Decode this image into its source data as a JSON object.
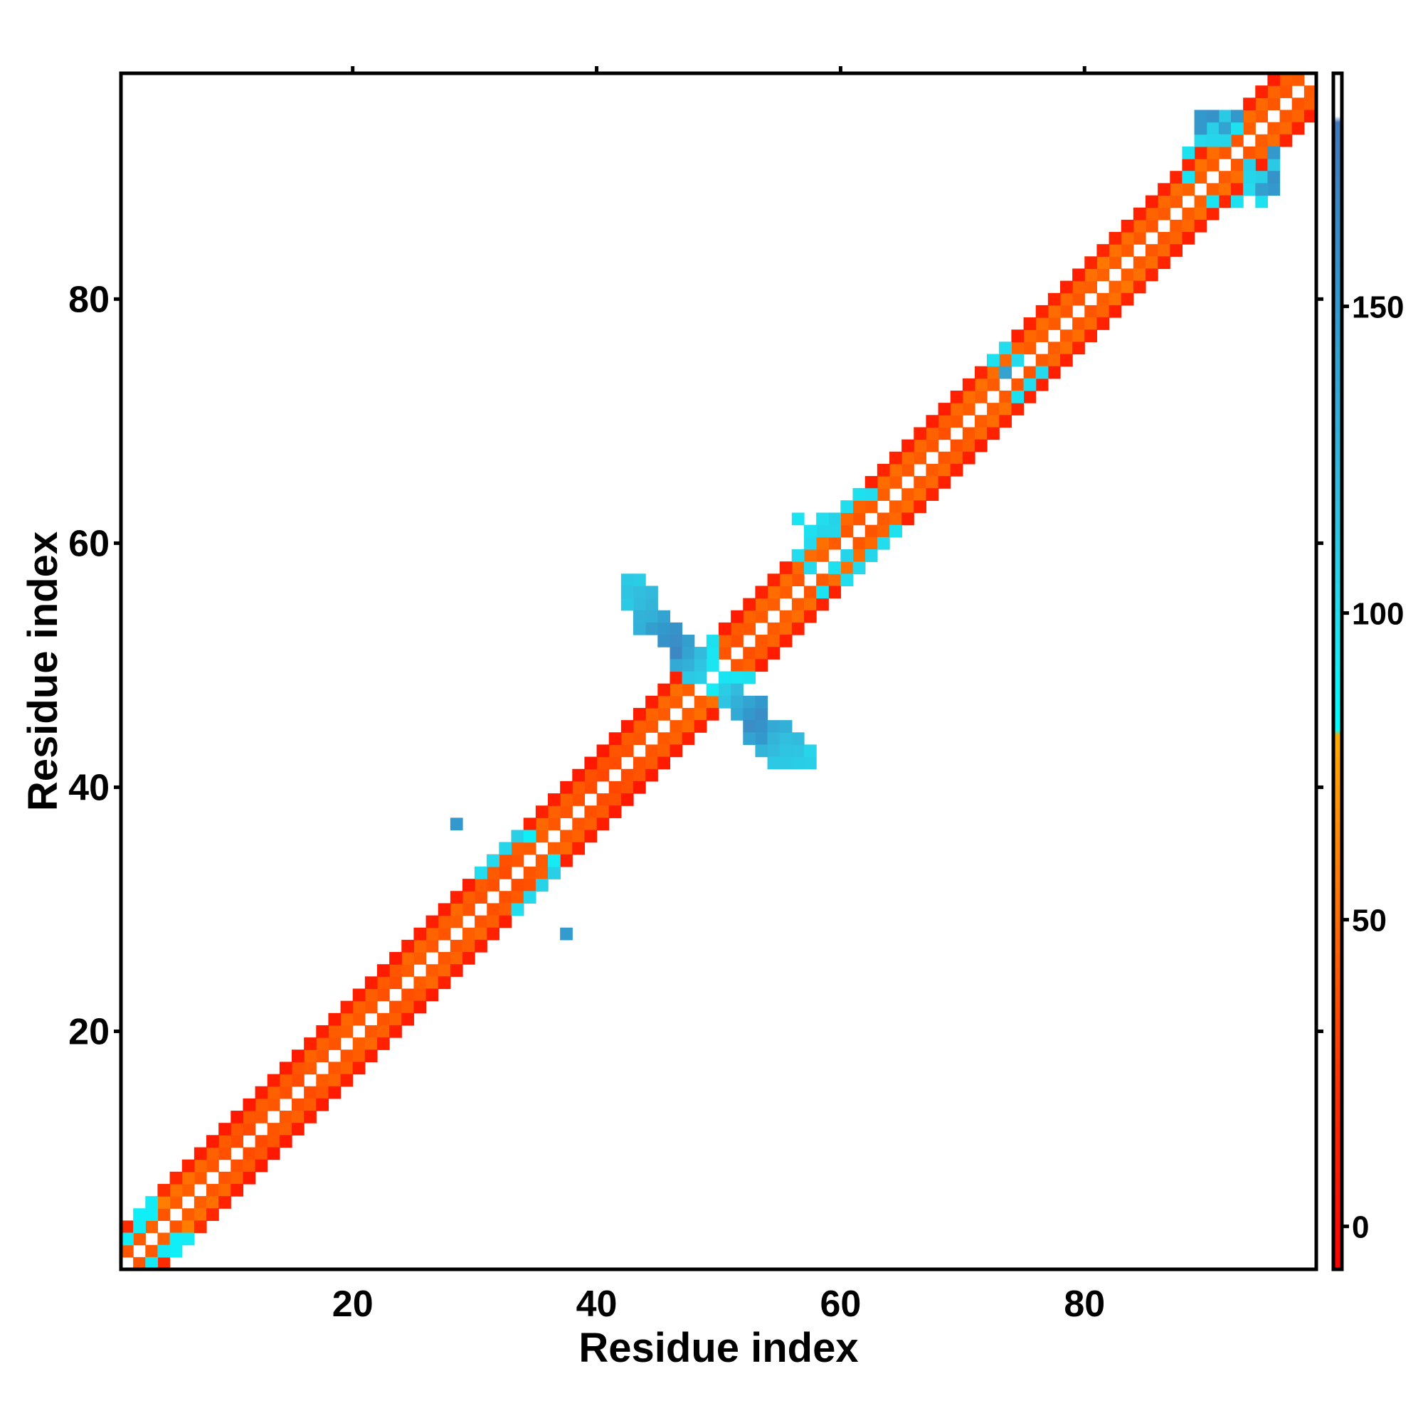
{
  "chart_data": {
    "type": "heatmap",
    "title": "",
    "xlabel": "Residue index",
    "ylabel": "Residue index",
    "xlim": [
      1,
      98
    ],
    "ylim": [
      1,
      98
    ],
    "x_ticks": [
      20,
      40,
      60,
      80
    ],
    "y_ticks": [
      20,
      40,
      60,
      80
    ],
    "grid": false,
    "colorbar": {
      "range": [
        -7,
        180
      ],
      "ticks": [
        0,
        50,
        100,
        150
      ],
      "stops": [
        {
          "value": -7,
          "color": "#ff0000"
        },
        {
          "value": 25,
          "color": "#ff3300"
        },
        {
          "value": 55,
          "color": "#ff7700"
        },
        {
          "value": 80,
          "color": "#ffaa00"
        },
        {
          "value": 81,
          "color": "#00ffff"
        },
        {
          "value": 100,
          "color": "#22ddee"
        },
        {
          "value": 120,
          "color": "#33bbdd"
        },
        {
          "value": 150,
          "color": "#3399cc"
        },
        {
          "value": 180,
          "color": "#4477bb"
        },
        {
          "value": 181,
          "color": "#ffffff"
        }
      ]
    },
    "diagonal_series": [
      {
        "offset": 1,
        "from": 1,
        "to": 97,
        "values": [
          40,
          42,
          45,
          40,
          43,
          44,
          41,
          40,
          38,
          36,
          35,
          40,
          41,
          38,
          36,
          42,
          40,
          39,
          44,
          41,
          40,
          38,
          37,
          43,
          42,
          41,
          40,
          44,
          39,
          38,
          38,
          36,
          40,
          42,
          44,
          41,
          40,
          38,
          35,
          34,
          36,
          38,
          40,
          41,
          42,
          43,
          44,
          92,
          92,
          40,
          38,
          41,
          42,
          44,
          43,
          40,
          42,
          45,
          43,
          41,
          40,
          42,
          44,
          43,
          41,
          42,
          40,
          38,
          41,
          43,
          44,
          42,
          41,
          40,
          42,
          43,
          42,
          41,
          40,
          44,
          45,
          43,
          42,
          41,
          40,
          42,
          43,
          45,
          44,
          42,
          41,
          40,
          43,
          42,
          41,
          40,
          42
        ]
      },
      {
        "offset": 2,
        "from": 1,
        "to": 96,
        "values": [
          55,
          55,
          90,
          58,
          52,
          52,
          48,
          45,
          42,
          40,
          41,
          44,
          45,
          42,
          40,
          46,
          45,
          43,
          48,
          45,
          44,
          42,
          40,
          48,
          47,
          46,
          44,
          48,
          44,
          42,
          42,
          38,
          44,
          46,
          48,
          45,
          44,
          42,
          38,
          38,
          40,
          42,
          44,
          46,
          48,
          50,
          52,
          95,
          95,
          45,
          42,
          46,
          48,
          50,
          50,
          48,
          50,
          52,
          50,
          48,
          46,
          48,
          50,
          50,
          48,
          48,
          45,
          44,
          48,
          50,
          52,
          50,
          48,
          46,
          48,
          50,
          50,
          48,
          46,
          52,
          55,
          52,
          50,
          48,
          46,
          48,
          50,
          52,
          52,
          50,
          48,
          46,
          50,
          48,
          46,
          44
        ]
      },
      {
        "offset": 3,
        "from": 1,
        "to": 95,
        "values": [
          20,
          90,
          92,
          22,
          18,
          14,
          12,
          10,
          10,
          8,
          9,
          11,
          12,
          10,
          9,
          13,
          12,
          11,
          14,
          12,
          11,
          10,
          9,
          13,
          12,
          12,
          11,
          14,
          11,
          10,
          10,
          9,
          12,
          13,
          14,
          12,
          11,
          10,
          8,
          8,
          9,
          10,
          11,
          12,
          13,
          13,
          14,
          95,
          98,
          12,
          10,
          13,
          14,
          15,
          15,
          13,
          14,
          16,
          15,
          13,
          12,
          13,
          15,
          15,
          13,
          14,
          12,
          11,
          14,
          15,
          16,
          15,
          14,
          12,
          14,
          15,
          15,
          14,
          12,
          16,
          17,
          16,
          15,
          14,
          12,
          14,
          15,
          16,
          16,
          15,
          14,
          12,
          15,
          14,
          12
        ]
      }
    ],
    "sheet_patches": [
      {
        "cells": [
          [
            1,
            3,
            90
          ],
          [
            3,
            1,
            92
          ],
          [
            2,
            4,
            91
          ],
          [
            4,
            2,
            93
          ]
        ]
      },
      {
        "cells": [
          [
            30,
            33,
            100
          ],
          [
            31,
            34,
            102
          ],
          [
            32,
            35,
            105
          ],
          [
            33,
            36,
            108
          ],
          [
            33,
            30,
            100
          ],
          [
            34,
            31,
            103
          ],
          [
            35,
            32,
            106
          ],
          [
            36,
            33,
            108
          ],
          [
            34,
            36,
            90
          ],
          [
            36,
            34,
            92
          ]
        ]
      },
      {
        "cells": [
          [
            28,
            37,
            150
          ],
          [
            37,
            28,
            148
          ]
        ]
      },
      {
        "cells": [
          [
            42,
            57,
            112
          ],
          [
            42,
            56,
            115
          ],
          [
            43,
            56,
            118
          ],
          [
            43,
            55,
            120
          ],
          [
            44,
            56,
            122
          ],
          [
            44,
            55,
            125
          ],
          [
            44,
            54,
            130
          ],
          [
            45,
            54,
            140
          ],
          [
            45,
            53,
            150
          ],
          [
            46,
            53,
            155
          ],
          [
            46,
            52,
            160
          ],
          [
            46,
            51,
            165
          ],
          [
            47,
            52,
            145
          ],
          [
            47,
            51,
            140
          ],
          [
            47,
            50,
            130
          ],
          [
            48,
            51,
            120
          ],
          [
            48,
            50,
            115
          ],
          [
            48,
            49,
            110
          ],
          [
            49,
            50,
            95
          ],
          [
            49,
            48,
            92
          ],
          [
            50,
            49,
            96
          ],
          [
            50,
            48,
            110
          ],
          [
            50,
            47,
            115
          ],
          [
            51,
            48,
            120
          ],
          [
            51,
            47,
            130
          ],
          [
            51,
            46,
            135
          ],
          [
            52,
            47,
            140
          ],
          [
            52,
            46,
            150
          ],
          [
            52,
            45,
            160
          ],
          [
            53,
            46,
            160
          ],
          [
            53,
            45,
            155
          ],
          [
            53,
            44,
            150
          ],
          [
            54,
            45,
            135
          ],
          [
            54,
            44,
            125
          ],
          [
            54,
            43,
            120
          ],
          [
            55,
            44,
            118
          ],
          [
            55,
            43,
            115
          ],
          [
            55,
            42,
            112
          ],
          [
            56,
            43,
            115
          ],
          [
            56,
            42,
            110
          ],
          [
            57,
            42,
            108
          ],
          [
            57,
            43,
            105
          ],
          [
            43,
            57,
            110
          ],
          [
            43,
            54,
            128
          ],
          [
            44,
            53,
            145
          ],
          [
            45,
            52,
            155
          ],
          [
            46,
            50,
            135
          ],
          [
            47,
            49,
            112
          ],
          [
            53,
            47,
            150
          ],
          [
            52,
            44,
            140
          ],
          [
            54,
            42,
            112
          ],
          [
            55,
            45,
            130
          ],
          [
            56,
            44,
            120
          ],
          [
            42,
            55,
            112
          ],
          [
            43,
            53,
            130
          ],
          [
            53,
            43,
            125
          ]
        ]
      },
      {
        "cells": [
          [
            56,
            59,
            100
          ],
          [
            57,
            60,
            102
          ],
          [
            58,
            61,
            104
          ],
          [
            59,
            62,
            106
          ],
          [
            60,
            63,
            100
          ],
          [
            61,
            64,
            98
          ],
          [
            56,
            62,
            96
          ],
          [
            57,
            61,
            98
          ],
          [
            58,
            62,
            100
          ],
          [
            59,
            58,
            98
          ],
          [
            60,
            57,
            100
          ],
          [
            61,
            58,
            102
          ],
          [
            62,
            59,
            104
          ],
          [
            63,
            60,
            100
          ],
          [
            64,
            61,
            98
          ],
          [
            58,
            56,
            96
          ],
          [
            57,
            58,
            102
          ],
          [
            59,
            61,
            104
          ],
          [
            60,
            59,
            106
          ],
          [
            62,
            64,
            100
          ]
        ]
      },
      {
        "cells": [
          [
            72,
            75,
            98
          ],
          [
            73,
            76,
            100
          ],
          [
            74,
            75,
            102
          ],
          [
            74,
            72,
            98
          ],
          [
            75,
            73,
            100
          ],
          [
            76,
            74,
            102
          ],
          [
            73,
            74,
            140
          ]
        ]
      },
      {
        "cells": [
          [
            88,
            92,
            98
          ],
          [
            89,
            93,
            102
          ],
          [
            90,
            94,
            108
          ],
          [
            91,
            95,
            112
          ],
          [
            92,
            88,
            98
          ],
          [
            93,
            89,
            102
          ],
          [
            94,
            90,
            108
          ],
          [
            95,
            91,
            112
          ],
          [
            89,
            95,
            150
          ],
          [
            90,
            95,
            155
          ],
          [
            89,
            94,
            150
          ],
          [
            91,
            94,
            140
          ],
          [
            92,
            94,
            98
          ],
          [
            94,
            88,
            98
          ],
          [
            95,
            89,
            150
          ],
          [
            95,
            90,
            155
          ],
          [
            94,
            89,
            145
          ],
          [
            93,
            91,
            108
          ],
          [
            91,
            93,
            104
          ],
          [
            88,
            90,
            96
          ],
          [
            90,
            88,
            96
          ],
          [
            90,
            93,
            104
          ],
          [
            93,
            90,
            104
          ],
          [
            92,
            95,
            150
          ],
          [
            95,
            92,
            150
          ]
        ]
      }
    ]
  }
}
